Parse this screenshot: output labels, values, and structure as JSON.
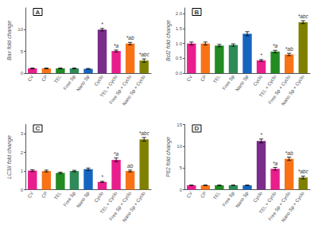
{
  "chart_data": [
    {
      "type": "bar",
      "title": "A",
      "ylabel": "Bax fold change",
      "categories": [
        "CV",
        "CP",
        "TEL",
        "Free Sp",
        "Nano Sp",
        "Cyclo",
        "TEL + Cyclo",
        "Free Sp + Cyclo",
        "Nano Sp + Cyclo"
      ],
      "values": [
        1.1,
        1.1,
        1.1,
        1.1,
        1.0,
        10.0,
        5.1,
        6.8,
        2.9
      ],
      "errors": [
        0.1,
        0.1,
        0.1,
        0.1,
        0.08,
        0.28,
        0.22,
        0.28,
        0.38
      ],
      "colors": [
        "#e91e8c",
        "#f97316",
        "#228b22",
        "#2e8b57",
        "#1565c0",
        "#7b2d8b",
        "#e91e8c",
        "#f97316",
        "#808000"
      ],
      "annotations": [
        {
          "category": "Cyclo",
          "text": "*"
        },
        {
          "category": "TEL + Cyclo",
          "text": "*a"
        },
        {
          "category": "Free Sp + Cyclo",
          "text": "*ab"
        },
        {
          "category": "Nano Sp + Cyclo",
          "text": "*abc"
        }
      ],
      "ylim": [
        0,
        15
      ],
      "yticks": [
        0,
        5,
        10
      ],
      "grid": false
    },
    {
      "type": "bar",
      "title": "B",
      "ylabel": "Bcl2 fold change",
      "categories": [
        "CV",
        "CP",
        "TEL",
        "Free Sp",
        "Nano Sp",
        "Cyclo",
        "TEL + Cyclo",
        "Free Sp + Cyclo",
        "Nano Sp + Cyclo"
      ],
      "values": [
        1.0,
        1.0,
        0.93,
        0.95,
        1.33,
        0.43,
        0.73,
        0.63,
        1.72
      ],
      "errors": [
        0.05,
        0.05,
        0.04,
        0.04,
        0.07,
        0.03,
        0.04,
        0.04,
        0.05
      ],
      "colors": [
        "#e91e8c",
        "#f97316",
        "#228b22",
        "#2e8b57",
        "#1565c0",
        "#e91e8c",
        "#228b22",
        "#f97316",
        "#808000"
      ],
      "annotations": [
        {
          "category": "Cyclo",
          "text": "*"
        },
        {
          "category": "TEL + Cyclo",
          "text": "*a"
        },
        {
          "category": "Free Sp + Cyclo",
          "text": "*ab"
        },
        {
          "category": "Nano Sp + Cyclo",
          "text": "*abc"
        }
      ],
      "ylim": [
        0.0,
        2.2
      ],
      "yticks": [
        {
          "value": 0.0,
          "label": "0.0"
        },
        {
          "value": 0.5,
          "label": "0.5"
        },
        {
          "value": 1.0,
          "label": "1.0"
        },
        {
          "value": 1.5,
          "label": "1.5"
        },
        {
          "value": 2.0,
          "label": "2.0"
        }
      ],
      "grid": false
    },
    {
      "type": "bar",
      "title": "C",
      "ylabel": "LC3II fold change",
      "categories": [
        "CV",
        "CP",
        "TEL",
        "Free Sp",
        "Nano Sp",
        "Cyclo",
        "TEL + Cyclo",
        "Free Sp + Cyclo",
        "Nano Sp + Cyclo"
      ],
      "values": [
        1.02,
        1.0,
        0.9,
        1.0,
        1.1,
        0.42,
        1.6,
        1.0,
        2.7
      ],
      "errors": [
        0.05,
        0.05,
        0.04,
        0.04,
        0.06,
        0.03,
        0.1,
        0.05,
        0.1
      ],
      "colors": [
        "#e91e8c",
        "#f97316",
        "#228b22",
        "#2e8b57",
        "#1565c0",
        "#e91e8c",
        "#e91e8c",
        "#f97316",
        "#808000"
      ],
      "annotations": [
        {
          "category": "Cyclo",
          "text": "*"
        },
        {
          "category": "TEL + Cyclo",
          "text": "*a"
        },
        {
          "category": "Free Sp + Cyclo",
          "text": "ab"
        },
        {
          "category": "Nano Sp + Cyclo",
          "text": "*abc"
        }
      ],
      "ylim": [
        0,
        3.5
      ],
      "yticks": [
        0,
        1,
        2,
        3
      ],
      "grid": false
    },
    {
      "type": "bar",
      "title": "D",
      "ylabel": "P62 fold change",
      "categories": [
        "CV",
        "CP",
        "TEL",
        "Free Sp",
        "Nano Sp",
        "Cyclo",
        "TEL + Cyclo",
        "Free Sp + Cyclo",
        "Nano Sp + Cyclo"
      ],
      "values": [
        1.0,
        1.0,
        1.0,
        1.0,
        1.0,
        11.2,
        4.8,
        7.1,
        2.8
      ],
      "errors": [
        0.06,
        0.06,
        0.06,
        0.06,
        0.06,
        0.45,
        0.32,
        0.38,
        0.32
      ],
      "colors": [
        "#e91e8c",
        "#f97316",
        "#228b22",
        "#2e8b57",
        "#1565c0",
        "#7b2d8b",
        "#e91e8c",
        "#f97316",
        "#808000"
      ],
      "annotations": [
        {
          "category": "Cyclo",
          "text": "*"
        },
        {
          "category": "TEL + Cyclo",
          "text": "*a"
        },
        {
          "category": "Free Sp + Cyclo",
          "text": "*ab"
        },
        {
          "category": "Nano Sp + Cyclo",
          "text": "*abc"
        }
      ],
      "ylim": [
        0,
        15
      ],
      "yticks": [
        0,
        5,
        10,
        15
      ],
      "grid": false
    }
  ]
}
